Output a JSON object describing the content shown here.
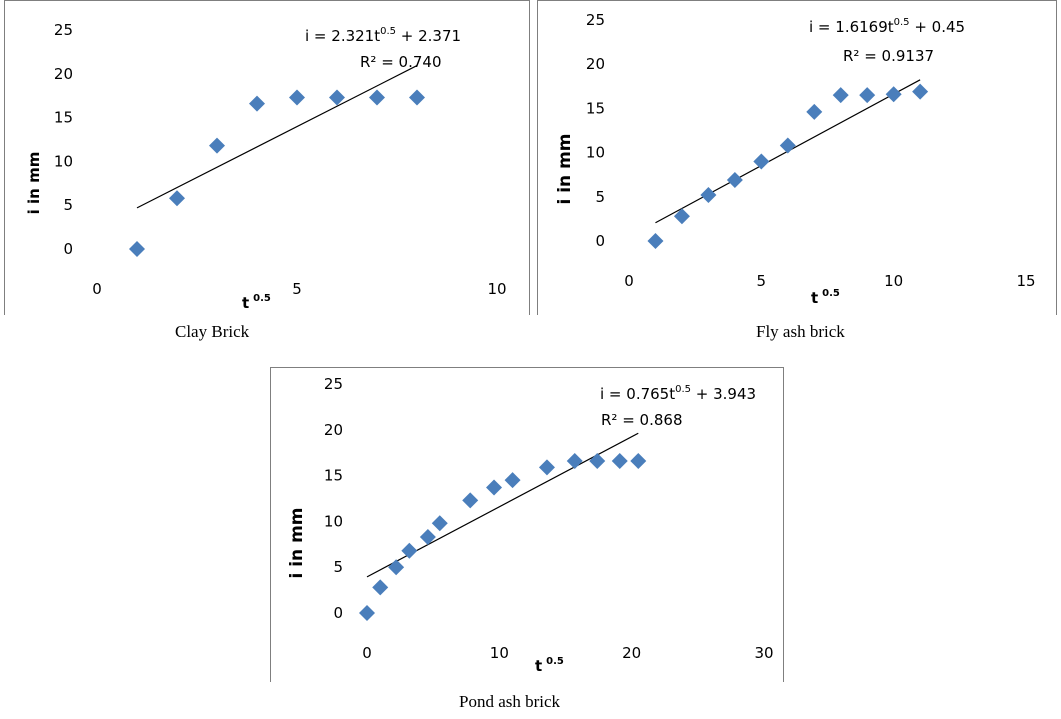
{
  "chart_data": [
    {
      "id": "clay",
      "type": "scatter",
      "caption": "Clay Brick",
      "xlabel": "t",
      "xlabel_sup": "0.5",
      "ylabel": "i in mm",
      "xlim": [
        0,
        10
      ],
      "ylim": [
        0,
        25
      ],
      "xticks": [
        "0",
        "5",
        "10"
      ],
      "yticks": [
        "0",
        "5",
        "10",
        "15",
        "20",
        "25"
      ],
      "equation": "i = 2.321t",
      "equation_sup": "0.5",
      "equation_tail": " + 2.371",
      "r2": "R² = 0.740",
      "series": [
        {
          "x": [
            1,
            2,
            3,
            4,
            5,
            6,
            7,
            8
          ],
          "y": [
            0,
            5.8,
            11.8,
            16.6,
            17.3,
            17.3,
            17.3,
            17.3
          ]
        }
      ],
      "trendline": {
        "slope": 2.321,
        "intercept": 2.371,
        "x_range": [
          1,
          8
        ]
      },
      "marker_color": "#4a7ebb"
    },
    {
      "id": "fly",
      "type": "scatter",
      "caption": "Fly ash brick",
      "xlabel": "t",
      "xlabel_sup": "0.5",
      "ylabel": "i in mm",
      "xlim": [
        0,
        15
      ],
      "ylim": [
        0,
        25
      ],
      "xticks": [
        "0",
        "5",
        "10",
        "15"
      ],
      "yticks": [
        "0",
        "5",
        "10",
        "15",
        "20",
        "25"
      ],
      "equation": "i = 1.6169t",
      "equation_sup": "0.5",
      "equation_tail": " + 0.45",
      "r2": "R² = 0.9137",
      "series": [
        {
          "x": [
            1,
            2,
            3,
            4,
            5,
            6,
            7,
            8,
            9,
            10,
            11
          ],
          "y": [
            0,
            2.8,
            5.2,
            6.9,
            9.0,
            10.8,
            14.6,
            16.5,
            16.5,
            16.6,
            16.9
          ]
        }
      ],
      "trendline": {
        "slope": 1.6169,
        "intercept": 0.45,
        "x_range": [
          1,
          11
        ]
      },
      "marker_color": "#4a7ebb"
    },
    {
      "id": "pond",
      "type": "scatter",
      "caption": "Pond ash brick",
      "xlabel": "t",
      "xlabel_sup": "0.5",
      "ylabel": "i in mm",
      "xlim": [
        0,
        30
      ],
      "ylim": [
        0,
        25
      ],
      "xticks": [
        "0",
        "10",
        "20",
        "30"
      ],
      "yticks": [
        "0",
        "5",
        "10",
        "15",
        "20",
        "25"
      ],
      "equation": "i = 0.765t",
      "equation_sup": "0.5",
      "equation_tail": " + 3.943",
      "r2": "R² = 0.868",
      "series": [
        {
          "x": [
            0,
            1,
            2.2,
            3.2,
            4.6,
            5.5,
            7.8,
            9.6,
            11,
            13.6,
            15.7,
            17.4,
            19.1,
            20.5
          ],
          "y": [
            0,
            2.8,
            5.0,
            6.8,
            8.3,
            9.8,
            12.3,
            13.7,
            14.5,
            15.9,
            16.6,
            16.6,
            16.6,
            16.6
          ]
        }
      ],
      "trendline": {
        "slope": 0.765,
        "intercept": 3.943,
        "x_range": [
          0,
          20.5
        ]
      },
      "marker_color": "#4a7ebb"
    }
  ]
}
